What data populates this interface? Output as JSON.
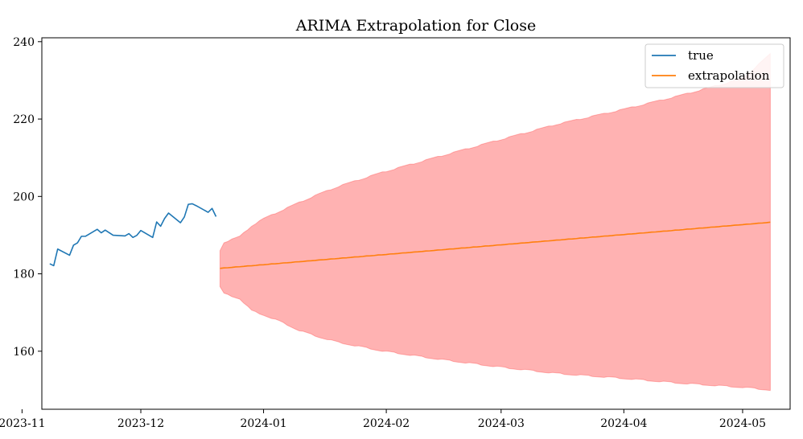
{
  "chart_data": {
    "type": "line",
    "title": "ARIMA Extrapolation for Close",
    "xlabel": "",
    "ylabel": "",
    "x_axis_type": "date",
    "xlim": [
      "2023-11-06",
      "2024-05-13"
    ],
    "ylim": [
      145,
      241
    ],
    "grid": false,
    "legend_position": "top-right",
    "x_ticks": [
      {
        "date": "2023-11-01",
        "label": "2023-11"
      },
      {
        "date": "2023-12-01",
        "label": "2023-12"
      },
      {
        "date": "2024-01-01",
        "label": "2024-01"
      },
      {
        "date": "2024-02-01",
        "label": "2024-02"
      },
      {
        "date": "2024-03-01",
        "label": "2024-03"
      },
      {
        "date": "2024-04-01",
        "label": "2024-04"
      },
      {
        "date": "2024-05-01",
        "label": "2024-05"
      }
    ],
    "y_ticks": [
      160,
      180,
      200,
      220,
      240
    ],
    "series": [
      {
        "name": "true",
        "color": "#1f77b4",
        "points": [
          [
            "2023-11-08",
            182.6
          ],
          [
            "2023-11-09",
            182.1
          ],
          [
            "2023-11-10",
            186.4
          ],
          [
            "2023-11-13",
            184.8
          ],
          [
            "2023-11-14",
            187.4
          ],
          [
            "2023-11-15",
            188.0
          ],
          [
            "2023-11-16",
            189.7
          ],
          [
            "2023-11-17",
            189.7
          ],
          [
            "2023-11-20",
            191.5
          ],
          [
            "2023-11-21",
            190.6
          ],
          [
            "2023-11-22",
            191.3
          ],
          [
            "2023-11-24",
            189.97
          ],
          [
            "2023-11-27",
            189.8
          ],
          [
            "2023-11-28",
            190.4
          ],
          [
            "2023-11-29",
            189.4
          ],
          [
            "2023-11-30",
            189.95
          ],
          [
            "2023-12-01",
            191.2
          ],
          [
            "2023-12-04",
            189.4
          ],
          [
            "2023-12-05",
            193.4
          ],
          [
            "2023-12-06",
            192.3
          ],
          [
            "2023-12-07",
            194.3
          ],
          [
            "2023-12-08",
            195.7
          ],
          [
            "2023-12-11",
            193.2
          ],
          [
            "2023-12-12",
            194.7
          ],
          [
            "2023-12-13",
            197.96
          ],
          [
            "2023-12-14",
            198.1
          ],
          [
            "2023-12-15",
            197.6
          ],
          [
            "2023-12-18",
            195.9
          ],
          [
            "2023-12-19",
            196.9
          ],
          [
            "2023-12-20",
            194.8
          ]
        ]
      },
      {
        "name": "extrapolation",
        "color": "#ff7f0e",
        "start": "2023-12-21",
        "end": "2024-05-08",
        "start_value": 181.4,
        "end_value": 193.3
      }
    ],
    "confidence_band": {
      "color": "#ff0000",
      "opacity": 0.3,
      "start": "2023-12-21",
      "end": "2024-05-08",
      "upper": [
        [
          "2023-12-21",
          186.0
        ],
        [
          "2023-12-22",
          188.0
        ],
        [
          "2023-12-26",
          189.5
        ],
        [
          "2023-12-29",
          192.3
        ],
        [
          "2024-01-01",
          194.1
        ],
        [
          "2024-01-05",
          196.0
        ],
        [
          "2024-01-10",
          198.3
        ],
        [
          "2024-01-15",
          200.5
        ],
        [
          "2024-01-20",
          202.5
        ],
        [
          "2024-01-31",
          206.1
        ],
        [
          "2024-02-14",
          210.1
        ],
        [
          "2024-03-01",
          214.6
        ],
        [
          "2024-03-15",
          218.5
        ],
        [
          "2024-04-01",
          222.4
        ],
        [
          "2024-04-15",
          225.9
        ],
        [
          "2024-05-01",
          230.3
        ],
        [
          "2024-05-08",
          236.7
        ]
      ],
      "lower": [
        [
          "2023-12-21",
          176.7
        ],
        [
          "2023-12-22",
          175.0
        ],
        [
          "2023-12-26",
          173.7
        ],
        [
          "2023-12-29",
          170.6
        ],
        [
          "2024-01-01",
          169.5
        ],
        [
          "2024-01-05",
          167.9
        ],
        [
          "2024-01-10",
          165.5
        ],
        [
          "2024-01-15",
          163.8
        ],
        [
          "2024-01-20",
          162.4
        ],
        [
          "2024-01-31",
          160.2
        ],
        [
          "2024-02-14",
          158.1
        ],
        [
          "2024-03-01",
          156.0
        ],
        [
          "2024-03-15",
          154.4
        ],
        [
          "2024-04-01",
          153.1
        ],
        [
          "2024-04-15",
          151.9
        ],
        [
          "2024-05-01",
          150.8
        ],
        [
          "2024-05-08",
          150.1
        ]
      ]
    }
  }
}
